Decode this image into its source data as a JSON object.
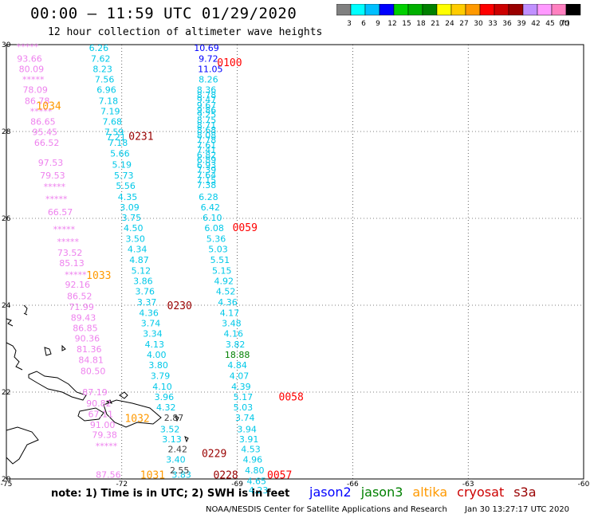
{
  "header": {
    "title": "00:00 – 11:59 UTC 01/29/2020",
    "subtitle": "12 hour collection of altimeter wave heights"
  },
  "colorbar": {
    "ticks": [
      "3",
      "6",
      "9",
      "12",
      "15",
      "18",
      "21",
      "24",
      "27",
      "30",
      "33",
      "36",
      "39",
      "42",
      "45",
      "70",
      "(ft)"
    ],
    "colors": [
      "#808080",
      "#00ffff",
      "#00bfff",
      "#0000ff",
      "#00d000",
      "#00b000",
      "#008000",
      "#ffff00",
      "#ffcc00",
      "#ff9900",
      "#ff0000",
      "#cc0000",
      "#990000",
      "#c090ff",
      "#ff99ff",
      "#ff80c0",
      "#000000"
    ]
  },
  "chart_data": {
    "type": "scatter",
    "xlim": [
      -75,
      -60
    ],
    "ylim": [
      20,
      30
    ],
    "xticks": [
      "-75",
      "-72",
      "-69",
      "-66",
      "-63",
      "-60"
    ],
    "yticks": [
      "20",
      "22",
      "24",
      "26",
      "28",
      "30"
    ],
    "grid": true,
    "units": "ft",
    "passes": [
      {
        "label": "1034",
        "color": "#ff9900",
        "at": [
          -73.9,
          28.6
        ]
      },
      {
        "label": "1033",
        "color": "#ff9900",
        "at": [
          -72.6,
          24.7
        ]
      },
      {
        "label": "1032",
        "color": "#ff9900",
        "at": [
          -71.6,
          21.4
        ]
      },
      {
        "label": "1031",
        "color": "#ff9900",
        "at": [
          -71.2,
          20.1
        ]
      },
      {
        "label": "0231",
        "color": "#990000",
        "at": [
          -71.5,
          27.9
        ]
      },
      {
        "label": "0230",
        "color": "#990000",
        "at": [
          -70.5,
          24.0
        ]
      },
      {
        "label": "0229",
        "color": "#990000",
        "at": [
          -69.6,
          20.6
        ]
      },
      {
        "label": "0228",
        "color": "#990000",
        "at": [
          -69.3,
          20.1
        ]
      },
      {
        "label": "0100",
        "color": "#ff0000",
        "at": [
          -69.2,
          29.6
        ]
      },
      {
        "label": "0059",
        "color": "#ff0000",
        "at": [
          -68.8,
          25.8
        ]
      },
      {
        "label": "0058",
        "color": "#ff0000",
        "at": [
          -67.6,
          21.9
        ]
      },
      {
        "label": "0057",
        "color": "#ff0000",
        "at": [
          -67.9,
          20.1
        ]
      }
    ],
    "tracks": [
      {
        "name": "altika",
        "color": "#ee82ee",
        "points": [
          [
            "*****",
            -74.45,
            29.95
          ],
          [
            "93.66",
            -74.4,
            29.68
          ],
          [
            "80.09",
            -74.35,
            29.44
          ],
          [
            "*****",
            -74.3,
            29.2
          ],
          [
            "78.09",
            -74.25,
            28.96
          ],
          [
            "86.78",
            -74.2,
            28.71
          ],
          [
            "*****",
            -74.1,
            28.47
          ],
          [
            "86.65",
            -74.05,
            28.23
          ],
          [
            "95.45",
            -74.0,
            27.99
          ],
          [
            "66.52",
            -73.95,
            27.74
          ],
          [
            "97.53",
            -73.85,
            27.28
          ],
          [
            "79.53",
            -73.8,
            26.99
          ],
          [
            "*****",
            -73.75,
            26.73
          ],
          [
            "*****",
            -73.7,
            26.45
          ],
          [
            "66.57",
            -73.6,
            26.15
          ],
          [
            "*****",
            -73.5,
            25.75
          ],
          [
            "*****",
            -73.4,
            25.47
          ],
          [
            "73.52",
            -73.35,
            25.21
          ],
          [
            "85.13",
            -73.3,
            24.97
          ],
          [
            "*****",
            -73.2,
            24.71
          ],
          [
            "92.16",
            -73.15,
            24.48
          ],
          [
            "86.52",
            -73.1,
            24.21
          ],
          [
            "71.99",
            -73.05,
            23.96
          ],
          [
            "89.43",
            -73.0,
            23.72
          ],
          [
            "86.85",
            -72.95,
            23.48
          ],
          [
            "90.36",
            -72.9,
            23.24
          ],
          [
            "81.36",
            -72.85,
            22.99
          ],
          [
            "84.81",
            -72.8,
            22.74
          ],
          [
            "80.50",
            -72.75,
            22.49
          ],
          [
            "87.19",
            -72.7,
            22.0
          ],
          [
            "90.82",
            -72.6,
            21.74
          ],
          [
            "67.11",
            -72.55,
            21.5
          ],
          [
            "91.00",
            -72.5,
            21.25
          ],
          [
            "79.38",
            -72.45,
            21.02
          ],
          [
            "*****",
            -72.4,
            20.76
          ],
          [
            "87.56",
            -72.35,
            20.1
          ]
        ]
      },
      {
        "name": "jason3",
        "color": "#00c8e8",
        "points": [
          [
            "6.26",
            -72.6,
            29.93
          ],
          [
            "7.62",
            -72.55,
            29.68
          ],
          [
            "8.23",
            -72.5,
            29.44
          ],
          [
            "7.56",
            -72.45,
            29.2
          ],
          [
            "6.96",
            -72.4,
            28.96
          ],
          [
            "7.18",
            -72.35,
            28.71
          ],
          [
            "7.19",
            -72.3,
            28.47
          ],
          [
            "7.68",
            -72.25,
            28.23
          ],
          [
            "7.59",
            -72.2,
            27.99
          ],
          [
            "7.21",
            -72.15,
            27.87
          ],
          [
            "7.18",
            -72.1,
            27.74
          ],
          [
            "5.66",
            -72.05,
            27.5
          ],
          [
            "5.19",
            -72.0,
            27.24
          ],
          [
            "5.73",
            -71.95,
            26.99
          ],
          [
            "5.56",
            -71.9,
            26.75
          ],
          [
            "4.35",
            -71.85,
            26.5
          ],
          [
            "3.09",
            -71.8,
            26.26
          ],
          [
            "3.75",
            -71.75,
            26.02
          ],
          [
            "4.50",
            -71.7,
            25.78
          ],
          [
            "3.50",
            -71.65,
            25.53
          ],
          [
            "4.34",
            -71.6,
            25.29
          ],
          [
            "4.87",
            -71.55,
            25.05
          ],
          [
            "5.12",
            -71.5,
            24.8
          ],
          [
            "3.86",
            -71.45,
            24.56
          ],
          [
            "3.76",
            -71.4,
            24.32
          ],
          [
            "3.37",
            -71.35,
            24.07
          ],
          [
            "4.36",
            -71.3,
            23.83
          ],
          [
            "3.74",
            -71.25,
            23.59
          ],
          [
            "3.34",
            -71.2,
            23.35
          ],
          [
            "4.13",
            -71.15,
            23.1
          ],
          [
            "4.00",
            -71.1,
            22.86
          ],
          [
            "3.80",
            -71.05,
            22.62
          ],
          [
            "3.79",
            -71.0,
            22.38
          ],
          [
            "4.10",
            -70.95,
            22.13
          ],
          [
            "3.96",
            -70.9,
            21.89
          ],
          [
            "4.32",
            -70.85,
            21.65
          ],
          [
            "3.52",
            -70.75,
            21.15
          ],
          [
            "3.13",
            -70.7,
            20.92
          ],
          [
            "3.40",
            -70.6,
            20.45
          ],
          [
            "3.83",
            -70.45,
            20.1
          ]
        ]
      },
      {
        "name": "cryosat",
        "color": "#404040",
        "points": [
          [
            "2.87",
            -70.65,
            21.41
          ],
          [
            "2.42",
            -70.55,
            20.69
          ],
          [
            "2.55",
            -70.5,
            20.2
          ]
        ]
      },
      {
        "name": "jason2",
        "color": "#0000ff",
        "points": [
          [
            "10.69",
            -69.8,
            29.93
          ],
          [
            "9.72",
            -69.75,
            29.68
          ],
          [
            "11.05",
            -69.7,
            29.44
          ]
        ]
      },
      {
        "name": "s3a",
        "color": "#00c8e8",
        "points": [
          [
            "8.26",
            -69.75,
            29.2
          ],
          [
            "8.36",
            -69.8,
            28.96
          ],
          [
            "8.78",
            -69.8,
            28.84
          ],
          [
            "9.47",
            -69.8,
            28.73
          ],
          [
            "9.67",
            -69.8,
            28.61
          ],
          [
            "9.86",
            -69.8,
            28.5
          ],
          [
            "9.25",
            -69.8,
            28.39
          ],
          [
            "8.75",
            -69.8,
            28.27
          ],
          [
            "8.71",
            -69.8,
            28.15
          ],
          [
            "8.68",
            -69.8,
            28.04
          ],
          [
            "8.08",
            -69.8,
            27.92
          ],
          [
            "7.78",
            -69.8,
            27.81
          ],
          [
            "7.61",
            -69.8,
            27.69
          ],
          [
            "7.41",
            -69.8,
            27.58
          ],
          [
            "6.82",
            -69.8,
            27.46
          ],
          [
            "6.89",
            -69.8,
            27.35
          ],
          [
            "6.93",
            -69.8,
            27.23
          ],
          [
            "7.39",
            -69.8,
            27.12
          ],
          [
            "7.64",
            -69.8,
            27.0
          ],
          [
            "7.15",
            -69.8,
            26.88
          ],
          [
            "7.38",
            -69.8,
            26.77
          ],
          [
            "6.28",
            -69.75,
            26.5
          ],
          [
            "6.42",
            -69.7,
            26.26
          ],
          [
            "6.10",
            -69.65,
            26.02
          ],
          [
            "6.08",
            -69.6,
            25.78
          ],
          [
            "5.36",
            -69.55,
            25.53
          ],
          [
            "5.03",
            -69.5,
            25.29
          ],
          [
            "5.51",
            -69.45,
            25.05
          ],
          [
            "5.15",
            -69.4,
            24.8
          ],
          [
            "4.92",
            -69.35,
            24.56
          ],
          [
            "4.52",
            -69.3,
            24.32
          ],
          [
            "4.36",
            -69.25,
            24.07
          ],
          [
            "4.17",
            -69.2,
            23.83
          ],
          [
            "3.48",
            -69.15,
            23.59
          ],
          [
            "4.16",
            -69.1,
            23.35
          ],
          [
            "3.82",
            -69.05,
            23.1
          ],
          [
            "4.84",
            -69.0,
            22.62
          ],
          [
            "4.07",
            -68.95,
            22.38
          ],
          [
            "4.39",
            -68.9,
            22.13
          ],
          [
            "5.17",
            -68.85,
            21.89
          ],
          [
            "5.03",
            -68.85,
            21.65
          ],
          [
            "3.74",
            -68.8,
            21.41
          ],
          [
            "3.94",
            -68.75,
            21.15
          ],
          [
            "3.91",
            -68.7,
            20.92
          ],
          [
            "4.53",
            -68.65,
            20.69
          ],
          [
            "4.96",
            -68.6,
            20.45
          ],
          [
            "4.80",
            -68.55,
            20.2
          ],
          [
            "4.65",
            -68.5,
            19.95
          ],
          [
            "4.23",
            -68.45,
            19.74
          ]
        ]
      },
      {
        "name": "jason3",
        "color": "#008000",
        "points": [
          [
            "18.88",
            -69.0,
            22.86
          ]
        ]
      }
    ]
  },
  "footer": {
    "note": "note: 1) Time is in UTC; 2) SWH is in feet",
    "satellites": [
      {
        "name": "jason2",
        "color": "#0000ff"
      },
      {
        "name": "jason3",
        "color": "#008000"
      },
      {
        "name": "altika",
        "color": "#ff9900"
      },
      {
        "name": "cryosat",
        "color": "#cc0000"
      },
      {
        "name": "s3a",
        "color": "#990000"
      }
    ],
    "credit": "NOAA/NESDIS Center for Satellite Applications and Research",
    "timestamp": "Jan 30 13:27:17 UTC 2020"
  }
}
